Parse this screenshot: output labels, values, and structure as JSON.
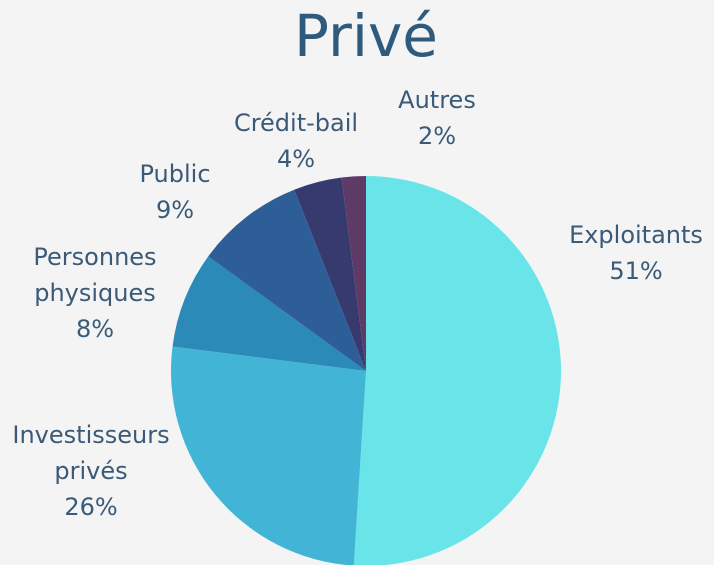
{
  "chart_data": {
    "type": "pie",
    "title": "Privé",
    "categories": [
      "Exploitants",
      "Investisseurs privés",
      "Personnes physiques",
      "Public",
      "Crédit-bail",
      "Autres"
    ],
    "values": [
      51,
      26,
      8,
      9,
      4,
      2
    ],
    "value_labels": [
      "51%",
      "26%",
      "8%",
      "9%",
      "4%",
      "2%"
    ],
    "colors": [
      "#69e5e9",
      "#42b4d6",
      "#2c8ab9",
      "#2e5e98",
      "#363a6e",
      "#5e3a66"
    ]
  }
}
